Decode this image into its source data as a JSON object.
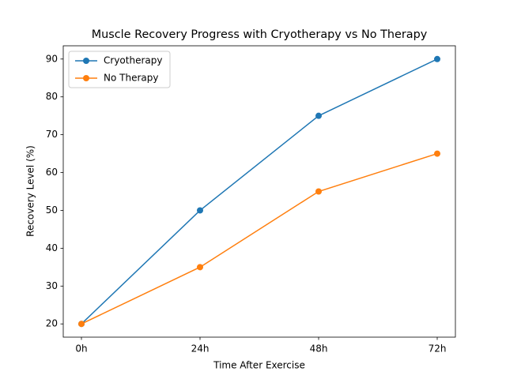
{
  "chart_data": {
    "type": "line",
    "title": "Muscle Recovery Progress with Cryotherapy vs No Therapy",
    "x_label": "Time After Exercise",
    "y_label": "Recovery Level (%)",
    "categories": [
      "0h",
      "24h",
      "48h",
      "72h"
    ],
    "series": [
      {
        "name": "Cryotherapy",
        "color": "#1f77b4",
        "values": [
          20,
          50,
          75,
          90
        ]
      },
      {
        "name": "No Therapy",
        "color": "#ff7f0e",
        "values": [
          20,
          35,
          55,
          65
        ]
      }
    ],
    "ylim": [
      16.5,
      93.5
    ],
    "yticks": [
      20,
      30,
      40,
      50,
      60,
      70,
      80,
      90
    ],
    "legend": "upper left"
  }
}
